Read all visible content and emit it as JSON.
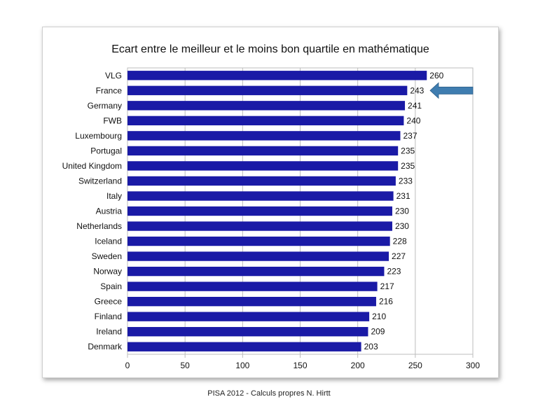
{
  "chart_data": {
    "type": "bar",
    "orientation": "horizontal",
    "title": "Ecart entre le meilleur et le moins bon quartile en mathématique",
    "categories": [
      "VLG",
      "France",
      "Germany",
      "FWB",
      "Luxembourg",
      "Portugal",
      "United Kingdom",
      "Switzerland",
      "Italy",
      "Austria",
      "Netherlands",
      "Iceland",
      "Sweden",
      "Norway",
      "Spain",
      "Greece",
      "Finland",
      "Ireland",
      "Denmark"
    ],
    "values": [
      260,
      243,
      241,
      240,
      237,
      235,
      235,
      233,
      231,
      230,
      230,
      228,
      227,
      223,
      217,
      216,
      210,
      209,
      203
    ],
    "xlim": [
      0,
      300
    ],
    "xticks": [
      0,
      50,
      100,
      150,
      200,
      250,
      300
    ],
    "grid": "vertical",
    "legend": "none",
    "bar_color": "#1a1aa6",
    "highlight": {
      "category": "France",
      "marker": "arrow",
      "color": "#3f7db0"
    }
  },
  "footer": "PISA 2012 - Calculs propres N. Hirtt"
}
